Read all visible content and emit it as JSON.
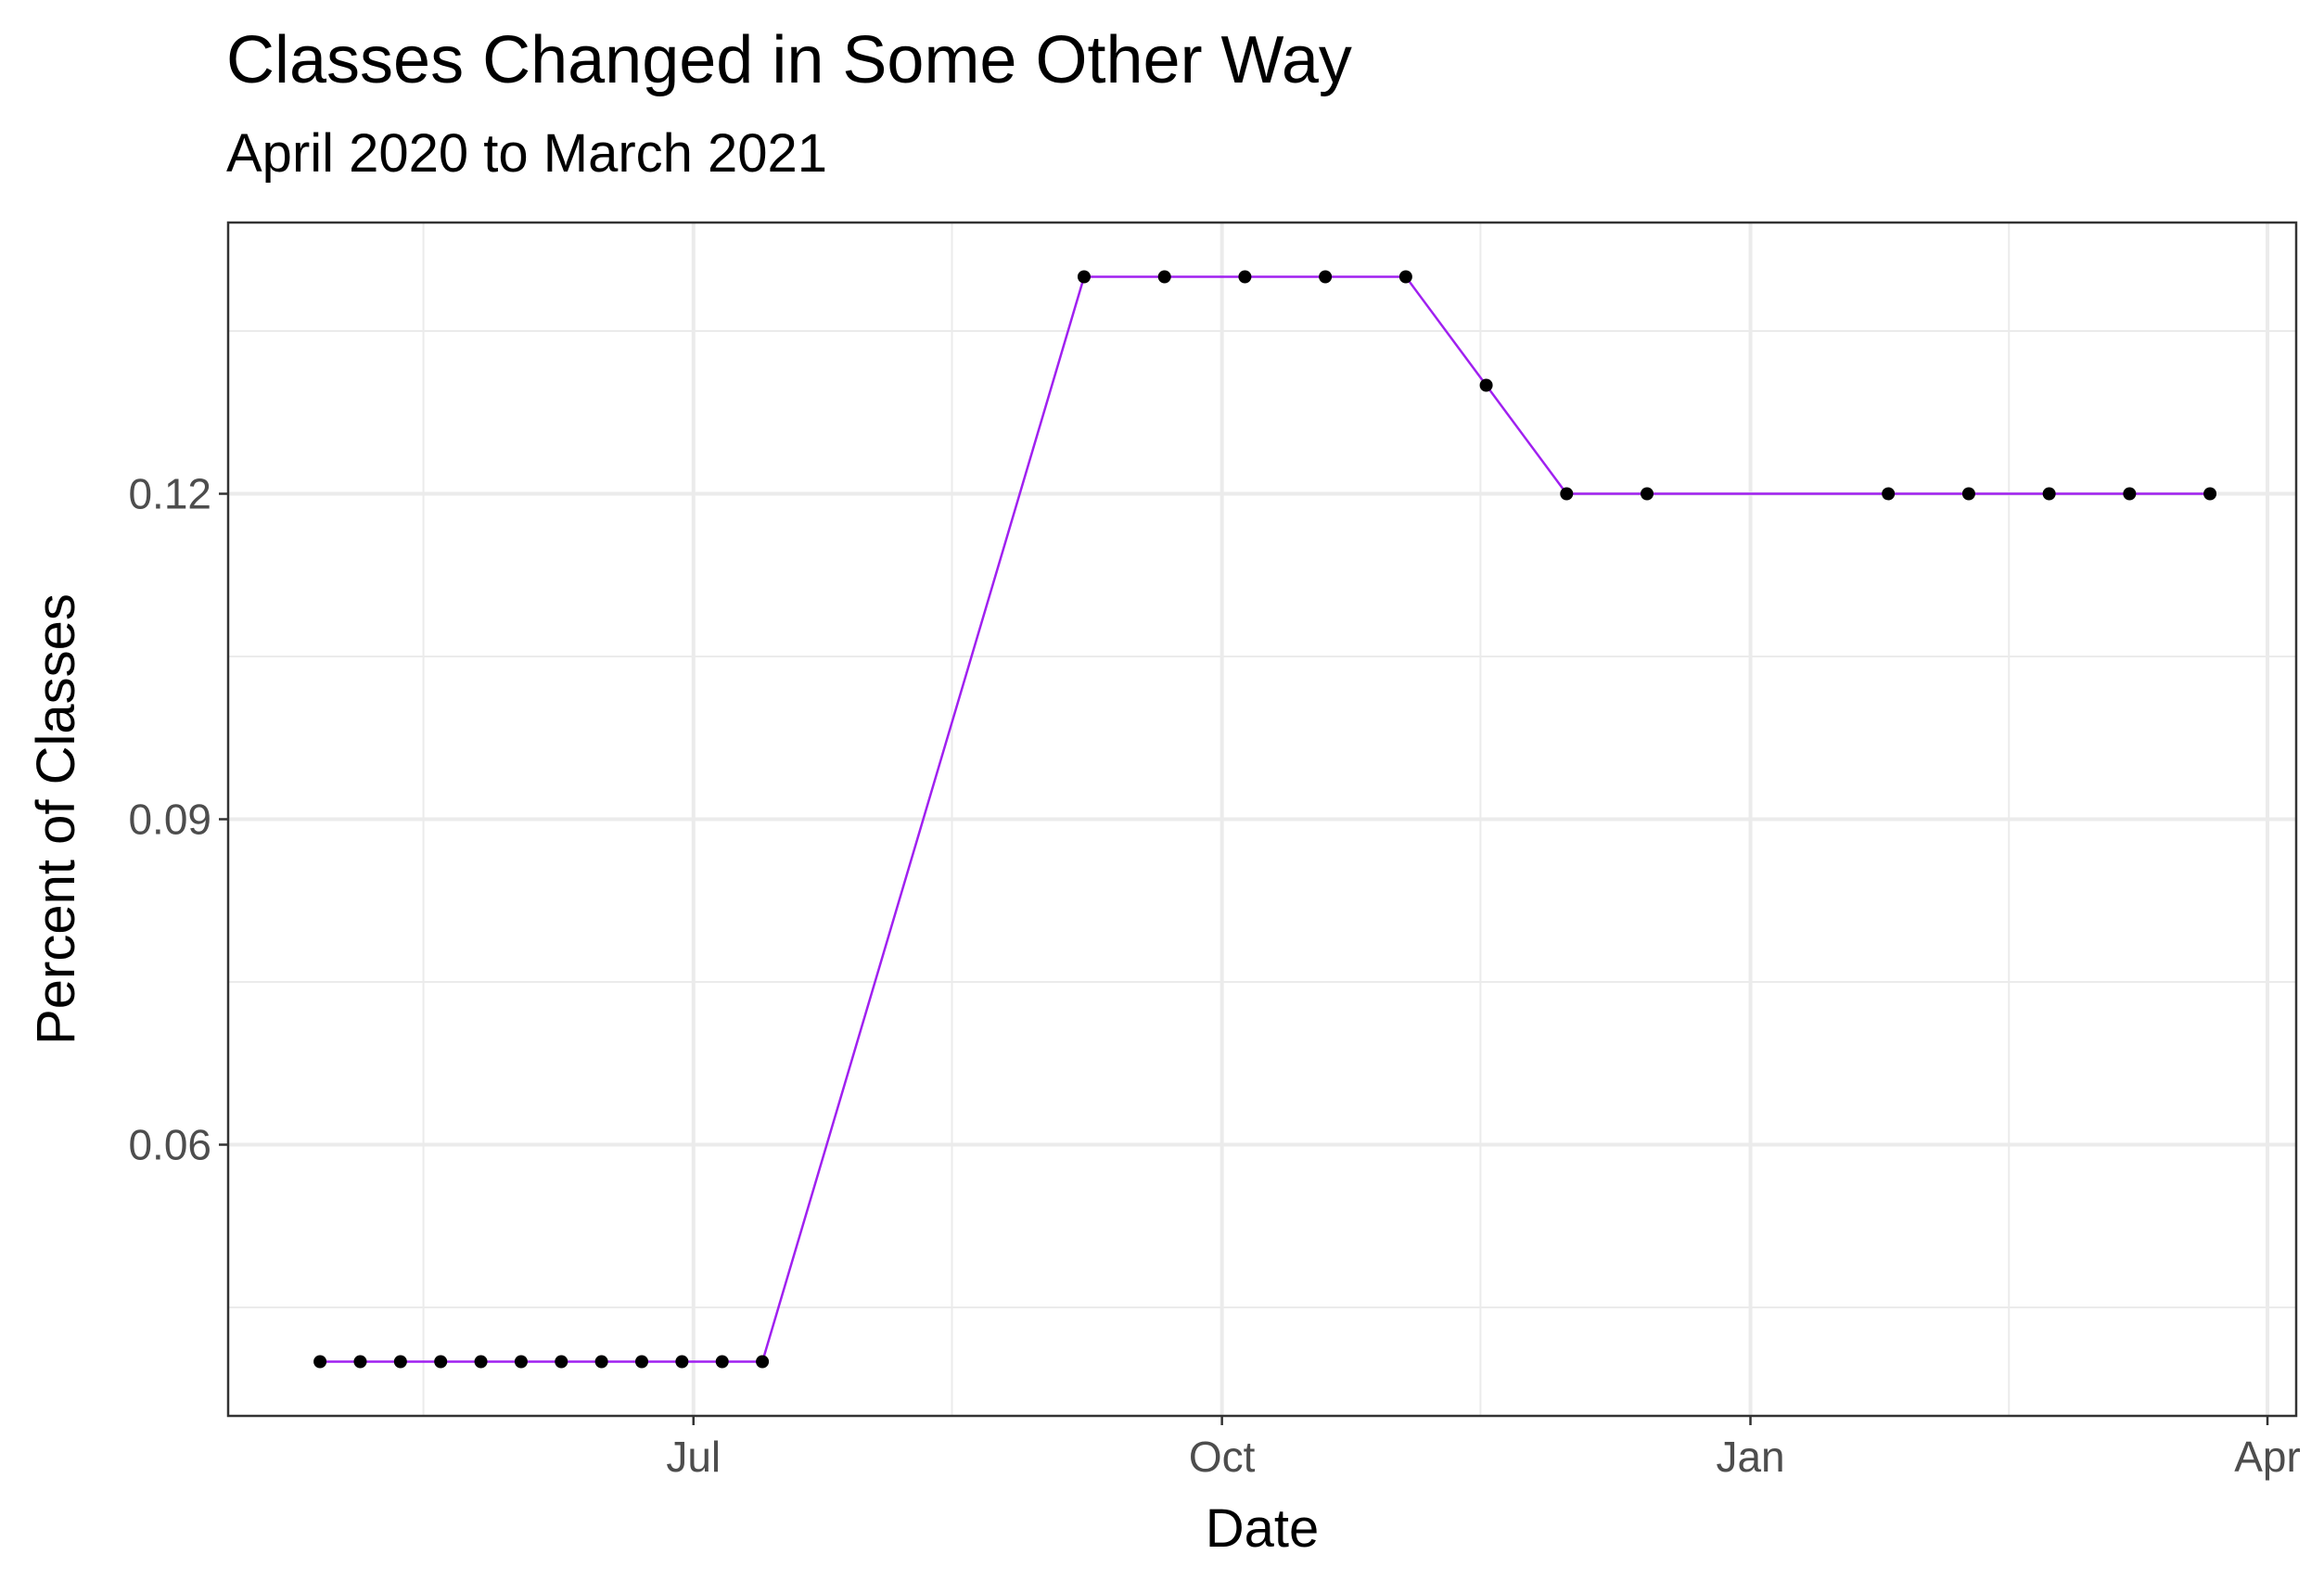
{
  "chart_data": {
    "type": "line",
    "title": "Classes Changed in Some Other Way",
    "subtitle": "April 2020 to March 2021",
    "xlabel": "Date",
    "ylabel": "Percent of Classes",
    "x_ticks": [
      {
        "date": "2020-07-01",
        "label": "Jul"
      },
      {
        "date": "2020-10-01",
        "label": "Oct"
      },
      {
        "date": "2021-01-01",
        "label": "Jan"
      },
      {
        "date": "2021-04-01",
        "label": "Apr"
      }
    ],
    "x_minor_dates": [
      "2020-05-15",
      "2020-08-15",
      "2020-11-15",
      "2021-02-15"
    ],
    "y_ticks": [
      0.06,
      0.09,
      0.12
    ],
    "y_minor": [
      0.045,
      0.075,
      0.105,
      0.135
    ],
    "xlim": [
      "2020-04-11",
      "2021-04-06"
    ],
    "ylim": [
      0.035,
      0.145
    ],
    "grid": true,
    "line_color": "#A020F0",
    "point_color": "#000000",
    "series": [
      {
        "x": [
          "2020-04-27",
          "2020-05-04",
          "2020-05-11",
          "2020-05-18",
          "2020-05-25",
          "2020-06-01",
          "2020-06-08",
          "2020-06-15",
          "2020-06-22",
          "2020-06-29",
          "2020-07-06",
          "2020-07-13",
          "2020-09-07",
          "2020-09-21",
          "2020-10-05",
          "2020-10-19",
          "2020-11-02",
          "2020-11-16",
          "2020-11-30",
          "2020-12-14",
          "2021-01-25",
          "2021-02-08",
          "2021-02-22",
          "2021-03-08",
          "2021-03-22"
        ],
        "values": [
          0.04,
          0.04,
          0.04,
          0.04,
          0.04,
          0.04,
          0.04,
          0.04,
          0.04,
          0.04,
          0.04,
          0.04,
          0.14,
          0.14,
          0.14,
          0.14,
          0.14,
          0.13,
          0.12,
          0.12,
          0.12,
          0.12,
          0.12,
          0.12,
          0.12
        ]
      }
    ]
  }
}
